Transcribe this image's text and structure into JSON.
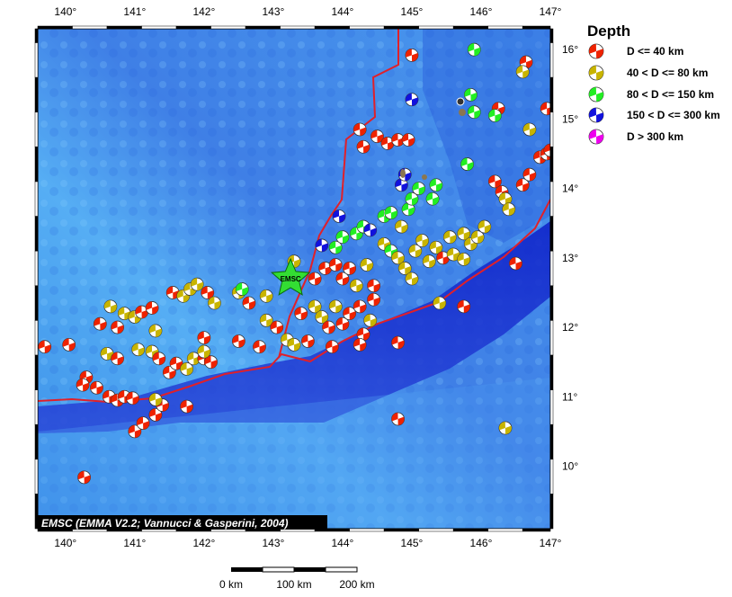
{
  "map": {
    "lon_range": [
      139.6,
      147.0
    ],
    "lat_range": [
      9.1,
      16.3
    ],
    "lon_ticks": [
      "140°",
      "141°",
      "142°",
      "143°",
      "144°",
      "145°",
      "146°",
      "147°"
    ],
    "lat_ticks": [
      "10°",
      "11°",
      "12°",
      "13°",
      "14°",
      "15°",
      "16°"
    ],
    "credit": "EMSC (EMMA V2.2; Vannucci & Gasperini, 2004)",
    "station_label": "EMSC",
    "station": {
      "lon": 143.25,
      "lat": 12.7
    },
    "colors": {
      "shallow": "#ee2200",
      "intermediate": "#c8b400",
      "deep_80_150": "#22ee22",
      "deep_150_300": "#1111dd",
      "deep_300": "#ee00ee",
      "ocean_deep": "#1a2fd0",
      "ocean_shelf": "#4aa0f0",
      "plate_boundary": "#e0202a"
    }
  },
  "legend": {
    "title": "Depth",
    "items": [
      {
        "label": "D <= 40 km",
        "color": "#ee2200"
      },
      {
        "label": "40 < D <= 80 km",
        "color": "#c8b400"
      },
      {
        "label": "80 < D <= 150 km",
        "color": "#22ee22"
      },
      {
        "label": "150 < D <= 300 km",
        "color": "#1111dd"
      },
      {
        "label": "D > 300 km",
        "color": "#ee00ee"
      }
    ]
  },
  "scale_bar": {
    "labels": [
      "0 km",
      "100 km",
      "200 km"
    ]
  },
  "events": [
    {
      "lon": 139.7,
      "lat": 11.72,
      "c": "shallow"
    },
    {
      "lon": 140.05,
      "lat": 11.75,
      "c": "shallow"
    },
    {
      "lon": 140.3,
      "lat": 11.28,
      "c": "shallow"
    },
    {
      "lon": 140.25,
      "lat": 11.17,
      "c": "shallow"
    },
    {
      "lon": 140.45,
      "lat": 11.13,
      "c": "shallow"
    },
    {
      "lon": 140.63,
      "lat": 11.0,
      "c": "shallow"
    },
    {
      "lon": 140.75,
      "lat": 10.95,
      "c": "shallow"
    },
    {
      "lon": 140.85,
      "lat": 11.0,
      "c": "shallow"
    },
    {
      "lon": 140.97,
      "lat": 10.98,
      "c": "shallow"
    },
    {
      "lon": 140.27,
      "lat": 9.84,
      "c": "shallow"
    },
    {
      "lon": 141.0,
      "lat": 10.5,
      "c": "shallow"
    },
    {
      "lon": 141.12,
      "lat": 10.62,
      "c": "shallow"
    },
    {
      "lon": 141.3,
      "lat": 10.74,
      "c": "shallow"
    },
    {
      "lon": 141.4,
      "lat": 10.88,
      "c": "shallow"
    },
    {
      "lon": 141.75,
      "lat": 10.86,
      "c": "shallow"
    },
    {
      "lon": 141.3,
      "lat": 10.96,
      "c": "intermediate"
    },
    {
      "lon": 140.6,
      "lat": 11.62,
      "c": "intermediate"
    },
    {
      "lon": 140.75,
      "lat": 11.55,
      "c": "shallow"
    },
    {
      "lon": 141.05,
      "lat": 11.68,
      "c": "intermediate"
    },
    {
      "lon": 141.25,
      "lat": 11.65,
      "c": "intermediate"
    },
    {
      "lon": 141.35,
      "lat": 11.55,
      "c": "shallow"
    },
    {
      "lon": 141.5,
      "lat": 11.35,
      "c": "shallow"
    },
    {
      "lon": 141.6,
      "lat": 11.48,
      "c": "shallow"
    },
    {
      "lon": 141.75,
      "lat": 11.4,
      "c": "intermediate"
    },
    {
      "lon": 141.85,
      "lat": 11.55,
      "c": "intermediate"
    },
    {
      "lon": 142.0,
      "lat": 11.55,
      "c": "shallow"
    },
    {
      "lon": 142.1,
      "lat": 11.5,
      "c": "shallow"
    },
    {
      "lon": 142.0,
      "lat": 11.65,
      "c": "intermediate"
    },
    {
      "lon": 142.0,
      "lat": 11.85,
      "c": "shallow"
    },
    {
      "lon": 142.5,
      "lat": 11.8,
      "c": "shallow"
    },
    {
      "lon": 142.8,
      "lat": 11.72,
      "c": "shallow"
    },
    {
      "lon": 140.5,
      "lat": 12.05,
      "c": "shallow"
    },
    {
      "lon": 140.65,
      "lat": 12.3,
      "c": "intermediate"
    },
    {
      "lon": 140.75,
      "lat": 12.0,
      "c": "shallow"
    },
    {
      "lon": 140.85,
      "lat": 12.2,
      "c": "intermediate"
    },
    {
      "lon": 141.0,
      "lat": 12.15,
      "c": "intermediate"
    },
    {
      "lon": 141.1,
      "lat": 12.22,
      "c": "shallow"
    },
    {
      "lon": 141.25,
      "lat": 12.28,
      "c": "shallow"
    },
    {
      "lon": 141.3,
      "lat": 11.95,
      "c": "intermediate"
    },
    {
      "lon": 141.55,
      "lat": 12.5,
      "c": "shallow"
    },
    {
      "lon": 141.7,
      "lat": 12.45,
      "c": "intermediate"
    },
    {
      "lon": 141.8,
      "lat": 12.55,
      "c": "intermediate"
    },
    {
      "lon": 141.9,
      "lat": 12.62,
      "c": "intermediate"
    },
    {
      "lon": 142.05,
      "lat": 12.5,
      "c": "shallow"
    },
    {
      "lon": 142.15,
      "lat": 12.35,
      "c": "intermediate"
    },
    {
      "lon": 142.5,
      "lat": 12.5,
      "c": "intermediate"
    },
    {
      "lon": 142.55,
      "lat": 12.55,
      "c": "deep_80_150"
    },
    {
      "lon": 142.65,
      "lat": 12.35,
      "c": "shallow"
    },
    {
      "lon": 142.9,
      "lat": 12.45,
      "c": "intermediate"
    },
    {
      "lon": 142.9,
      "lat": 12.1,
      "c": "intermediate"
    },
    {
      "lon": 143.05,
      "lat": 12.0,
      "c": "shallow"
    },
    {
      "lon": 143.2,
      "lat": 11.82,
      "c": "intermediate"
    },
    {
      "lon": 143.3,
      "lat": 11.75,
      "c": "intermediate"
    },
    {
      "lon": 143.4,
      "lat": 12.2,
      "c": "shallow"
    },
    {
      "lon": 143.5,
      "lat": 11.8,
      "c": "shallow"
    },
    {
      "lon": 143.6,
      "lat": 12.3,
      "c": "intermediate"
    },
    {
      "lon": 143.7,
      "lat": 12.15,
      "c": "intermediate"
    },
    {
      "lon": 143.8,
      "lat": 12.0,
      "c": "shallow"
    },
    {
      "lon": 143.9,
      "lat": 12.3,
      "c": "intermediate"
    },
    {
      "lon": 144.0,
      "lat": 12.05,
      "c": "shallow"
    },
    {
      "lon": 144.1,
      "lat": 12.2,
      "c": "shallow"
    },
    {
      "lon": 144.25,
      "lat": 12.3,
      "c": "shallow"
    },
    {
      "lon": 144.3,
      "lat": 11.9,
      "c": "shallow"
    },
    {
      "lon": 144.25,
      "lat": 11.75,
      "c": "shallow"
    },
    {
      "lon": 144.4,
      "lat": 12.1,
      "c": "intermediate"
    },
    {
      "lon": 144.45,
      "lat": 12.4,
      "c": "shallow"
    },
    {
      "lon": 143.85,
      "lat": 11.72,
      "c": "shallow"
    },
    {
      "lon": 144.8,
      "lat": 11.78,
      "c": "shallow"
    },
    {
      "lon": 143.6,
      "lat": 12.7,
      "c": "shallow"
    },
    {
      "lon": 143.75,
      "lat": 12.85,
      "c": "shallow"
    },
    {
      "lon": 143.9,
      "lat": 12.9,
      "c": "shallow"
    },
    {
      "lon": 144.0,
      "lat": 12.7,
      "c": "shallow"
    },
    {
      "lon": 144.1,
      "lat": 12.85,
      "c": "shallow"
    },
    {
      "lon": 144.2,
      "lat": 12.6,
      "c": "intermediate"
    },
    {
      "lon": 144.35,
      "lat": 12.9,
      "c": "intermediate"
    },
    {
      "lon": 144.45,
      "lat": 12.6,
      "c": "shallow"
    },
    {
      "lon": 143.7,
      "lat": 13.18,
      "c": "deep_150_300"
    },
    {
      "lon": 143.9,
      "lat": 13.15,
      "c": "deep_80_150"
    },
    {
      "lon": 144.0,
      "lat": 13.3,
      "c": "deep_80_150"
    },
    {
      "lon": 144.2,
      "lat": 13.35,
      "c": "deep_80_150"
    },
    {
      "lon": 144.3,
      "lat": 13.45,
      "c": "deep_80_150"
    },
    {
      "lon": 144.4,
      "lat": 13.4,
      "c": "deep_150_300"
    },
    {
      "lon": 144.6,
      "lat": 13.6,
      "c": "deep_80_150"
    },
    {
      "lon": 144.7,
      "lat": 13.65,
      "c": "deep_80_150"
    },
    {
      "lon": 144.6,
      "lat": 13.2,
      "c": "intermediate"
    },
    {
      "lon": 144.7,
      "lat": 13.1,
      "c": "deep_80_150"
    },
    {
      "lon": 144.8,
      "lat": 13.0,
      "c": "intermediate"
    },
    {
      "lon": 144.9,
      "lat": 12.85,
      "c": "intermediate"
    },
    {
      "lon": 145.0,
      "lat": 12.7,
      "c": "intermediate"
    },
    {
      "lon": 145.05,
      "lat": 13.1,
      "c": "intermediate"
    },
    {
      "lon": 145.15,
      "lat": 13.25,
      "c": "intermediate"
    },
    {
      "lon": 145.25,
      "lat": 12.95,
      "c": "intermediate"
    },
    {
      "lon": 145.35,
      "lat": 13.15,
      "c": "intermediate"
    },
    {
      "lon": 145.45,
      "lat": 13.0,
      "c": "shallow"
    },
    {
      "lon": 145.55,
      "lat": 13.3,
      "c": "intermediate"
    },
    {
      "lon": 145.6,
      "lat": 13.05,
      "c": "intermediate"
    },
    {
      "lon": 145.75,
      "lat": 13.35,
      "c": "intermediate"
    },
    {
      "lon": 145.85,
      "lat": 13.2,
      "c": "intermediate"
    },
    {
      "lon": 145.95,
      "lat": 13.3,
      "c": "intermediate"
    },
    {
      "lon": 146.05,
      "lat": 13.45,
      "c": "intermediate"
    },
    {
      "lon": 145.75,
      "lat": 12.98,
      "c": "intermediate"
    },
    {
      "lon": 144.95,
      "lat": 13.7,
      "c": "deep_80_150"
    },
    {
      "lon": 145.0,
      "lat": 13.85,
      "c": "deep_80_150"
    },
    {
      "lon": 145.1,
      "lat": 14.0,
      "c": "deep_80_150"
    },
    {
      "lon": 144.85,
      "lat": 14.05,
      "c": "deep_150_300"
    },
    {
      "lon": 144.9,
      "lat": 14.2,
      "c": "deep_150_300"
    },
    {
      "lon": 145.3,
      "lat": 13.85,
      "c": "deep_80_150"
    },
    {
      "lon": 145.35,
      "lat": 14.05,
      "c": "deep_80_150"
    },
    {
      "lon": 144.85,
      "lat": 13.45,
      "c": "intermediate"
    },
    {
      "lon": 145.4,
      "lat": 12.35,
      "c": "intermediate"
    },
    {
      "lon": 143.95,
      "lat": 13.6,
      "c": "deep_150_300"
    },
    {
      "lon": 144.25,
      "lat": 14.85,
      "c": "shallow"
    },
    {
      "lon": 144.3,
      "lat": 14.6,
      "c": "shallow"
    },
    {
      "lon": 144.5,
      "lat": 14.75,
      "c": "shallow"
    },
    {
      "lon": 144.65,
      "lat": 14.65,
      "c": "shallow"
    },
    {
      "lon": 144.8,
      "lat": 14.7,
      "c": "shallow"
    },
    {
      "lon": 144.95,
      "lat": 14.7,
      "c": "shallow"
    },
    {
      "lon": 145.0,
      "lat": 15.92,
      "c": "shallow"
    },
    {
      "lon": 145.0,
      "lat": 15.28,
      "c": "deep_150_300"
    },
    {
      "lon": 145.9,
      "lat": 16.0,
      "c": "deep_80_150"
    },
    {
      "lon": 145.85,
      "lat": 15.35,
      "c": "deep_80_150"
    },
    {
      "lon": 145.9,
      "lat": 15.1,
      "c": "deep_80_150"
    },
    {
      "lon": 146.25,
      "lat": 15.15,
      "c": "shallow"
    },
    {
      "lon": 146.2,
      "lat": 15.05,
      "c": "deep_80_150"
    },
    {
      "lon": 146.65,
      "lat": 15.82,
      "c": "shallow"
    },
    {
      "lon": 146.6,
      "lat": 15.68,
      "c": "intermediate"
    },
    {
      "lon": 146.95,
      "lat": 15.15,
      "c": "shallow"
    },
    {
      "lon": 146.7,
      "lat": 14.85,
      "c": "intermediate"
    },
    {
      "lon": 146.85,
      "lat": 14.45,
      "c": "shallow"
    },
    {
      "lon": 146.95,
      "lat": 14.5,
      "c": "shallow"
    },
    {
      "lon": 147.0,
      "lat": 14.55,
      "c": "shallow"
    },
    {
      "lon": 145.8,
      "lat": 14.35,
      "c": "deep_80_150"
    },
    {
      "lon": 146.2,
      "lat": 14.1,
      "c": "shallow"
    },
    {
      "lon": 146.3,
      "lat": 13.95,
      "c": "shallow"
    },
    {
      "lon": 146.35,
      "lat": 13.85,
      "c": "intermediate"
    },
    {
      "lon": 146.4,
      "lat": 13.7,
      "c": "intermediate"
    },
    {
      "lon": 146.6,
      "lat": 14.05,
      "c": "shallow"
    },
    {
      "lon": 146.7,
      "lat": 14.2,
      "c": "shallow"
    },
    {
      "lon": 146.5,
      "lat": 12.92,
      "c": "shallow"
    },
    {
      "lon": 145.75,
      "lat": 12.3,
      "c": "shallow"
    },
    {
      "lon": 146.35,
      "lat": 10.55,
      "c": "intermediate"
    },
    {
      "lon": 144.8,
      "lat": 10.68,
      "c": "shallow"
    },
    {
      "lon": 143.3,
      "lat": 12.95,
      "c": "intermediate"
    }
  ]
}
